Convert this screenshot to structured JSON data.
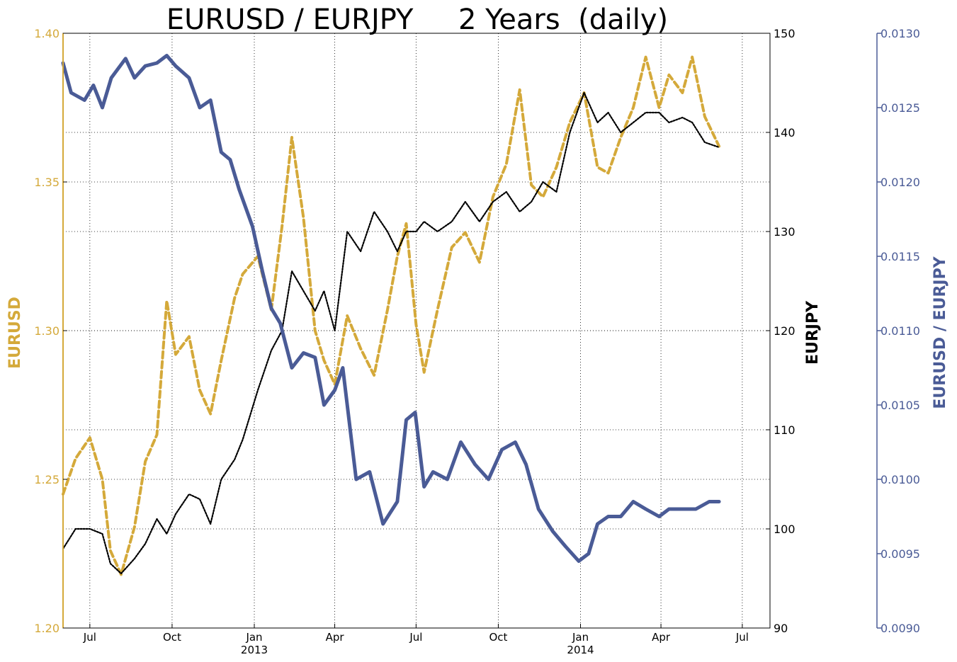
{
  "chart_data": {
    "type": "line",
    "title": "EURUSD / EURJPY     2 Years  (daily)",
    "colors": {
      "eurusd": "#d4a93a",
      "eurjpy": "#000000",
      "ratio": "#4a5b96"
    },
    "axes": {
      "x": {
        "tick_labels": [
          "Jul",
          "Oct",
          "Jan",
          "Apr",
          "Jul",
          "Oct",
          "Jan",
          "Apr",
          "Jul"
        ],
        "year_labels": [
          "2013",
          "2014"
        ],
        "range": [
          "2012-06-01",
          "2014-08-01"
        ]
      },
      "left": {
        "label": "EURUSD",
        "ylim": [
          1.2,
          1.4
        ],
        "ticks": [
          "1.20",
          "1.25",
          "1.30",
          "1.35",
          "1.40"
        ]
      },
      "right": {
        "label": "EURJPY",
        "ylim": [
          90,
          150
        ],
        "ticks": [
          "90",
          "100",
          "110",
          "120",
          "130",
          "140",
          "150"
        ]
      },
      "far_right": {
        "label": "EURUSD / EURJPY",
        "ylim": [
          0.009,
          0.013
        ],
        "ticks": [
          "0.0090",
          "0.0095",
          "0.0100",
          "0.0105",
          "0.0110",
          "0.0115",
          "0.0120",
          "0.0125",
          "0.0130"
        ]
      }
    },
    "grid": true,
    "series": [
      {
        "name": "EURUSD",
        "axis": "left",
        "style": "dashed",
        "x": [
          "2012-06-01",
          "2012-06-15",
          "2012-07-01",
          "2012-07-15",
          "2012-07-24",
          "2012-08-05",
          "2012-08-20",
          "2012-09-01",
          "2012-09-14",
          "2012-09-25",
          "2012-10-05",
          "2012-10-20",
          "2012-11-01",
          "2012-11-13",
          "2012-11-25",
          "2012-12-10",
          "2012-12-19",
          "2013-01-05",
          "2013-01-20",
          "2013-02-01",
          "2013-02-12",
          "2013-02-25",
          "2013-03-10",
          "2013-03-20",
          "2013-04-01",
          "2013-04-15",
          "2013-04-30",
          "2013-05-15",
          "2013-05-30",
          "2013-06-10",
          "2013-06-20",
          "2013-07-01",
          "2013-07-10",
          "2013-07-25",
          "2013-08-10",
          "2013-08-25",
          "2013-09-10",
          "2013-09-25",
          "2013-10-10",
          "2013-10-25",
          "2013-11-07",
          "2013-11-20",
          "2013-12-05",
          "2013-12-20",
          "2014-01-05",
          "2014-01-20",
          "2014-02-01",
          "2014-02-15",
          "2014-03-01",
          "2014-03-15",
          "2014-03-30",
          "2014-04-10",
          "2014-04-25",
          "2014-05-06",
          "2014-05-20",
          "2014-06-05"
        ],
        "y": [
          1.245,
          1.257,
          1.264,
          1.25,
          1.226,
          1.218,
          1.234,
          1.256,
          1.265,
          1.31,
          1.292,
          1.298,
          1.28,
          1.272,
          1.29,
          1.311,
          1.319,
          1.325,
          1.307,
          1.335,
          1.365,
          1.338,
          1.3,
          1.29,
          1.282,
          1.305,
          1.294,
          1.285,
          1.307,
          1.325,
          1.336,
          1.302,
          1.286,
          1.307,
          1.328,
          1.333,
          1.323,
          1.345,
          1.356,
          1.381,
          1.349,
          1.345,
          1.355,
          1.37,
          1.38,
          1.355,
          1.353,
          1.365,
          1.375,
          1.392,
          1.375,
          1.386,
          1.38,
          1.392,
          1.372,
          1.362
        ]
      },
      {
        "name": "EURJPY",
        "axis": "right",
        "style": "dotted",
        "x": [
          "2012-06-01",
          "2012-06-15",
          "2012-07-01",
          "2012-07-15",
          "2012-07-24",
          "2012-08-05",
          "2012-08-20",
          "2012-09-01",
          "2012-09-14",
          "2012-09-25",
          "2012-10-05",
          "2012-10-20",
          "2012-11-01",
          "2012-11-13",
          "2012-11-25",
          "2012-12-10",
          "2012-12-19",
          "2013-01-05",
          "2013-01-20",
          "2013-02-01",
          "2013-02-12",
          "2013-02-25",
          "2013-03-10",
          "2013-03-20",
          "2013-04-01",
          "2013-04-15",
          "2013-04-30",
          "2013-05-15",
          "2013-05-30",
          "2013-06-10",
          "2013-06-20",
          "2013-07-01",
          "2013-07-10",
          "2013-07-25",
          "2013-08-10",
          "2013-08-25",
          "2013-09-10",
          "2013-09-25",
          "2013-10-10",
          "2013-10-25",
          "2013-11-07",
          "2013-11-20",
          "2013-12-05",
          "2013-12-20",
          "2014-01-05",
          "2014-01-20",
          "2014-02-01",
          "2014-02-15",
          "2014-03-01",
          "2014-03-15",
          "2014-03-30",
          "2014-04-10",
          "2014-04-25",
          "2014-05-06",
          "2014-05-20",
          "2014-06-05"
        ],
        "y": [
          98,
          100,
          100,
          99.5,
          96.5,
          95.5,
          97,
          98.5,
          101,
          99.5,
          101.5,
          103.5,
          103,
          100.5,
          105,
          107,
          109,
          114,
          118,
          120,
          126,
          124,
          122,
          124,
          120,
          130,
          128,
          132,
          130,
          128,
          130,
          130,
          131,
          130,
          131,
          133,
          131,
          133,
          134,
          132,
          133,
          135,
          134,
          140,
          144,
          141,
          142,
          140,
          141,
          142,
          142,
          141,
          141.5,
          141,
          139,
          138.5
        ]
      },
      {
        "name": "EURUSD / EURJPY",
        "axis": "far_right",
        "style": "solid",
        "x": [
          "2012-06-01",
          "2012-06-10",
          "2012-06-25",
          "2012-07-05",
          "2012-07-15",
          "2012-07-25",
          "2012-08-10",
          "2012-08-20",
          "2012-09-01",
          "2012-09-14",
          "2012-09-25",
          "2012-10-05",
          "2012-10-20",
          "2012-11-01",
          "2012-11-13",
          "2012-11-25",
          "2012-12-05",
          "2012-12-15",
          "2012-12-30",
          "2013-01-10",
          "2013-01-20",
          "2013-01-30",
          "2013-02-12",
          "2013-02-25",
          "2013-03-10",
          "2013-03-20",
          "2013-04-01",
          "2013-04-10",
          "2013-04-25",
          "2013-05-10",
          "2013-05-25",
          "2013-06-10",
          "2013-06-20",
          "2013-06-30",
          "2013-07-10",
          "2013-07-20",
          "2013-08-05",
          "2013-08-20",
          "2013-09-05",
          "2013-09-20",
          "2013-10-05",
          "2013-10-20",
          "2013-11-01",
          "2013-11-15",
          "2013-12-01",
          "2013-12-15",
          "2013-12-30",
          "2014-01-10",
          "2014-01-20",
          "2014-02-01",
          "2014-02-15",
          "2014-03-01",
          "2014-03-15",
          "2014-03-30",
          "2014-04-10",
          "2014-04-25",
          "2014-05-10",
          "2014-05-25",
          "2014-06-05"
        ],
        "y": [
          0.0128,
          0.0126,
          0.01255,
          0.01265,
          0.0125,
          0.0127,
          0.01283,
          0.0127,
          0.01278,
          0.0128,
          0.01285,
          0.01278,
          0.0127,
          0.0125,
          0.01255,
          0.0122,
          0.01215,
          0.01195,
          0.0117,
          0.0114,
          0.01115,
          0.01105,
          0.01075,
          0.01085,
          0.01082,
          0.0105,
          0.0106,
          0.01075,
          0.01,
          0.01005,
          0.0097,
          0.00985,
          0.0104,
          0.01045,
          0.00995,
          0.01005,
          0.01,
          0.01025,
          0.0101,
          0.01,
          0.0102,
          0.01025,
          0.0101,
          0.0098,
          0.00965,
          0.00955,
          0.00945,
          0.0095,
          0.0097,
          0.00975,
          0.00975,
          0.00985,
          0.0098,
          0.00975,
          0.0098,
          0.0098,
          0.0098,
          0.00985,
          0.00985
        ]
      }
    ]
  }
}
